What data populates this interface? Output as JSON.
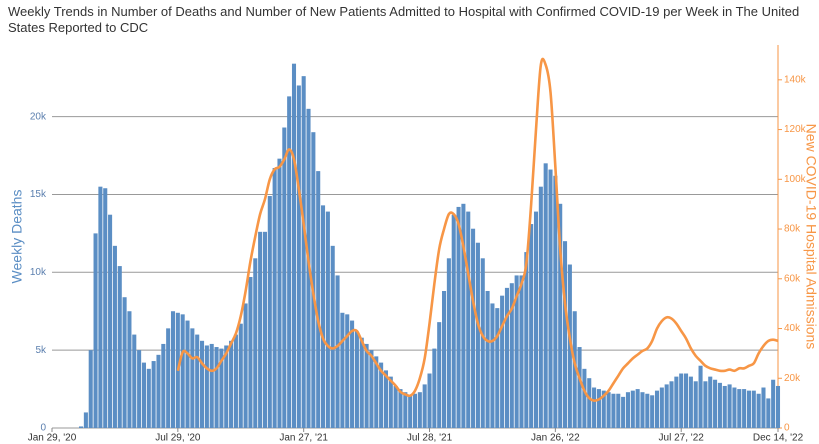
{
  "chart_data": {
    "type": "bar-line",
    "title": "Weekly Trends in Number of Deaths and Number of New Patients Admitted to Hospital with Confirmed COVID-19 per Week in The United States Reported to CDC",
    "y_label": "Weekly Deaths",
    "y2_label": "New COVID-19 Hospital Admissions",
    "x": [
      0,
      1,
      2,
      3,
      4,
      5,
      6,
      7,
      8,
      9,
      10,
      11,
      12,
      13,
      14,
      15,
      16,
      17,
      18,
      19,
      20,
      21,
      22,
      23,
      24,
      25,
      26,
      27,
      28,
      29,
      30,
      31,
      32,
      33,
      34,
      35,
      36,
      37,
      38,
      39,
      40,
      41,
      42,
      43,
      44,
      45,
      46,
      47,
      48,
      49,
      50,
      51,
      52,
      53,
      54,
      55,
      56,
      57,
      58,
      59,
      60,
      61,
      62,
      63,
      64,
      65,
      66,
      67,
      68,
      69,
      70,
      71,
      72,
      73,
      74,
      75,
      76,
      77,
      78,
      79,
      80,
      81,
      82,
      83,
      84,
      85,
      86,
      87,
      88,
      89,
      90,
      91,
      92,
      93,
      94,
      95,
      96,
      97,
      98,
      99,
      100,
      101,
      102,
      103,
      104,
      105,
      106,
      107,
      108,
      109,
      110,
      111,
      112,
      113,
      114,
      115,
      116,
      117,
      118,
      119,
      120,
      121,
      122,
      123,
      124,
      125,
      126,
      127,
      128,
      129,
      130,
      131,
      132,
      133,
      134,
      135,
      136,
      137,
      138,
      139,
      140,
      141,
      142,
      143,
      144,
      145,
      146,
      147,
      148,
      149,
      150
    ],
    "xlim": [
      0,
      150
    ],
    "xticks": [
      {
        "value": 0,
        "label": "Jan 29, '20"
      },
      {
        "value": 26,
        "label": "Jul 29, '20"
      },
      {
        "value": 52,
        "label": "Jan 27, '21"
      },
      {
        "value": 78,
        "label": "Jul 28, '21"
      },
      {
        "value": 104,
        "label": "Jan 26, '22"
      },
      {
        "value": 130,
        "label": "Jul 27, '22"
      },
      {
        "value": 150,
        "label": "Dec 14, '22"
      }
    ],
    "ylim": [
      0,
      24600
    ],
    "yticks": [
      0,
      {
        "value": 5000,
        "label": "5k"
      },
      {
        "value": 10000,
        "label": "10k"
      },
      {
        "value": 15000,
        "label": "15k"
      },
      {
        "value": 20000,
        "label": "20k"
      }
    ],
    "y2lim": [
      0,
      154000
    ],
    "y2ticks": [
      0,
      {
        "value": 20000,
        "label": "20k"
      },
      {
        "value": 40000,
        "label": "40k"
      },
      {
        "value": 60000,
        "label": "60k"
      },
      {
        "value": 80000,
        "label": "80k"
      },
      {
        "value": 100000,
        "label": "100k"
      },
      {
        "value": 120000,
        "label": "120k"
      },
      {
        "value": 140000,
        "label": "140k"
      }
    ],
    "grid": true,
    "series": [
      {
        "kind": "bar",
        "color": "#5b8ec4",
        "values": [
          0,
          0,
          0,
          0,
          0,
          0,
          100,
          1000,
          5000,
          12500,
          15500,
          15400,
          13700,
          11700,
          10400,
          8400,
          7500,
          6000,
          5000,
          4200,
          3800,
          4300,
          4700,
          5400,
          6400,
          7500,
          7400,
          7300,
          6900,
          6400,
          6000,
          5600,
          5300,
          5400,
          5200,
          5100,
          5300,
          5600,
          6000,
          6700,
          8000,
          9700,
          10900,
          12600,
          12600,
          14900,
          16700,
          17300,
          19300,
          21300,
          23400,
          22000,
          22600,
          20500,
          19000,
          16500,
          14300,
          13900,
          11700,
          9800,
          7400,
          7300,
          6900,
          6200,
          5800,
          5400,
          5000,
          4600,
          4200,
          3700,
          3300,
          2700,
          2500,
          2300,
          2100,
          2200,
          2300,
          2800,
          3500,
          5100,
          6800,
          8800,
          10900,
          13700,
          14200,
          14400,
          13900,
          12800,
          11900,
          10900,
          8800,
          8000,
          7700,
          8500,
          9000,
          9300,
          9800,
          9800,
          11300,
          13100,
          13900,
          15500,
          17000,
          16600,
          16200,
          14400,
          12000,
          10500,
          7500,
          5200,
          3800,
          3200,
          2600,
          2500,
          2400,
          2300,
          2200,
          2200,
          2000,
          2300,
          2400,
          2500,
          2300,
          2200,
          2100,
          2400,
          2600,
          2800,
          3000,
          3300,
          3500,
          3500,
          3300,
          3000,
          4000,
          3000,
          3300,
          3100,
          2900,
          2700,
          2800,
          2600,
          2500,
          2500,
          2400,
          2400,
          2200,
          2600,
          1900,
          3100,
          2700
        ]
      },
      {
        "kind": "line",
        "axis": "y2",
        "color": "#f79646",
        "values": [
          null,
          null,
          null,
          null,
          null,
          null,
          null,
          null,
          null,
          null,
          null,
          null,
          null,
          null,
          null,
          null,
          null,
          null,
          null,
          null,
          null,
          null,
          null,
          null,
          null,
          null,
          23000,
          30500,
          30000,
          28000,
          28500,
          26000,
          24000,
          23000,
          24000,
          27000,
          30000,
          34000,
          38000,
          45000,
          55000,
          67000,
          77000,
          86000,
          92000,
          100000,
          104000,
          105000,
          108000,
          112000,
          108000,
          96000,
          82000,
          67000,
          54000,
          43000,
          36000,
          33000,
          32000,
          33000,
          35000,
          37000,
          39000,
          39000,
          35000,
          31000,
          29000,
          26000,
          23000,
          21000,
          19000,
          17000,
          14500,
          13500,
          13000,
          15000,
          20000,
          28000,
          42000,
          58000,
          72000,
          80000,
          86000,
          86000,
          82000,
          73000,
          62000,
          51000,
          42000,
          37000,
          35000,
          35000,
          37000,
          41000,
          45000,
          48000,
          53000,
          58000,
          66000,
          90000,
          120000,
          146000,
          146000,
          135000,
          105000,
          72000,
          50000,
          36000,
          26000,
          20000,
          15000,
          12000,
          11000,
          11500,
          13000,
          15000,
          18000,
          21000,
          24000,
          26000,
          28000,
          29500,
          31000,
          32000,
          35000,
          40000,
          43000,
          44500,
          44000,
          42000,
          39000,
          36000,
          32000,
          29000,
          27000,
          25000,
          24000,
          23500,
          23000,
          23000,
          23500,
          23000,
          24000,
          24000,
          25000,
          26000,
          30000,
          33000,
          35000,
          35500,
          35000
        ]
      }
    ]
  }
}
